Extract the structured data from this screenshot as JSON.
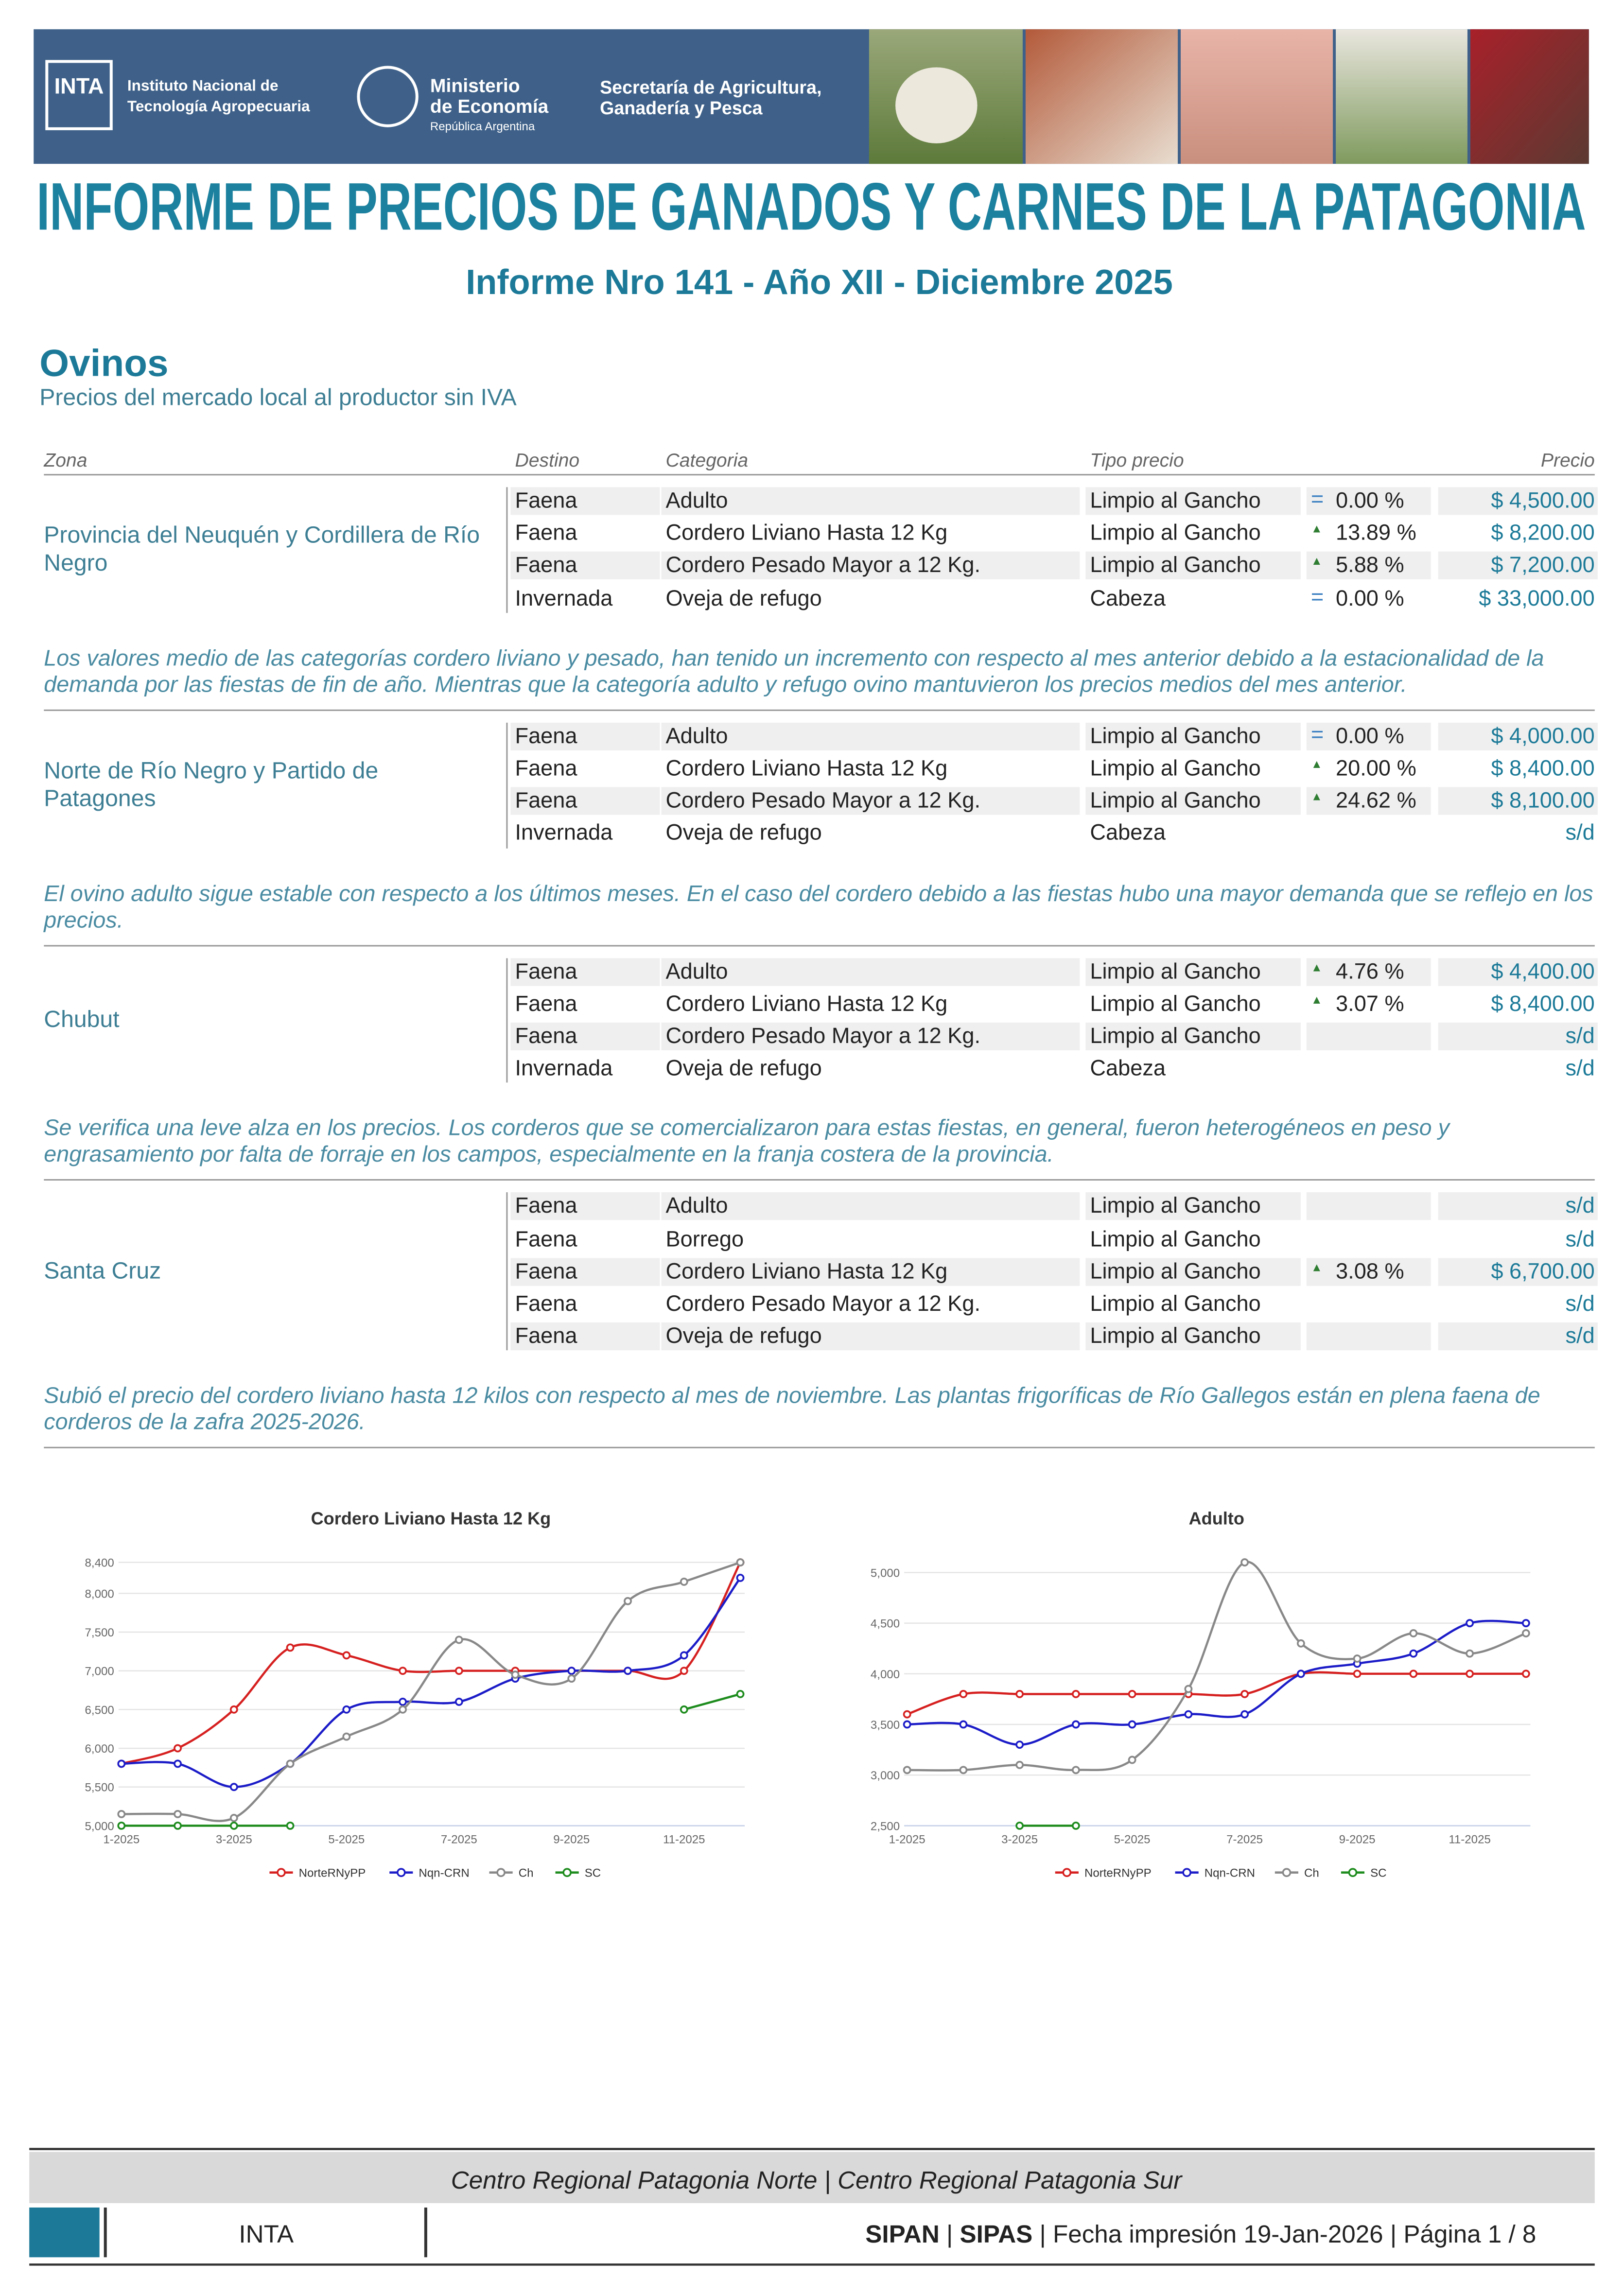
{
  "header": {
    "inta_logo": "INTA",
    "inta_name": [
      "Instituto Nacional de",
      "Tecnología Agropecuaria"
    ],
    "ministerio": [
      "Ministerio",
      "de Economía"
    ],
    "republica": "República Argentina",
    "secretaria": [
      "Secretaría de Agricultura,",
      "Ganadería y Pesca"
    ],
    "title": "INFORME DE PRECIOS DE GANADOS Y CARNES DE LA PATAGONIA"
  },
  "report": {
    "number": "Informe Nro 141 - Año XII - Diciembre 2025",
    "section": "Ovinos",
    "subtitle": "Precios del mercado local al productor sin IVA"
  },
  "table": {
    "columns": {
      "zona": "Zona",
      "destino": "Destino",
      "categoria": "Categoria",
      "tipo": "Tipo precio",
      "precio": "Precio"
    },
    "zones": [
      {
        "name": "Provincia del Neuquén y Cordillera de Río Negro",
        "rows": [
          {
            "destino": "Faena",
            "categoria": "Adulto",
            "tipo": "Limpio al Gancho",
            "tendencia": "=",
            "variacion": "0.00 %",
            "precio": "$ 4,500.00"
          },
          {
            "destino": "Faena",
            "categoria": "Cordero Liviano Hasta 12 Kg",
            "tipo": "Limpio al Gancho",
            "tendencia": "▲",
            "variacion": "13.89 %",
            "precio": "$ 8,200.00"
          },
          {
            "destino": "Faena",
            "categoria": "Cordero Pesado Mayor a 12 Kg.",
            "tipo": "Limpio al Gancho",
            "tendencia": "▲",
            "variacion": "5.88 %",
            "precio": "$ 7,200.00"
          },
          {
            "destino": "Invernada",
            "categoria": "Oveja de refugo",
            "tipo": "Cabeza",
            "tendencia": "=",
            "variacion": "0.00 %",
            "precio": "$ 33,000.00"
          }
        ],
        "comment": "Los valores medio de las categorías cordero liviano y pesado, han tenido un incremento con respecto al mes anterior debido a la estacionalidad de la demanda por las fiestas de fin de año. Mientras que la categoría adulto y refugo ovino mantuvieron los precios medios del mes anterior."
      },
      {
        "name": "Norte de Río Negro y Partido de Patagones",
        "rows": [
          {
            "destino": "Faena",
            "categoria": "Adulto",
            "tipo": "Limpio al Gancho",
            "tendencia": "=",
            "variacion": "0.00 %",
            "precio": "$ 4,000.00"
          },
          {
            "destino": "Faena",
            "categoria": "Cordero Liviano Hasta 12 Kg",
            "tipo": "Limpio al Gancho",
            "tendencia": "▲",
            "variacion": "20.00 %",
            "precio": "$ 8,400.00"
          },
          {
            "destino": "Faena",
            "categoria": "Cordero Pesado Mayor a 12 Kg.",
            "tipo": "Limpio al Gancho",
            "tendencia": "▲",
            "variacion": "24.62 %",
            "precio": "$ 8,100.00"
          },
          {
            "destino": "Invernada",
            "categoria": "Oveja de refugo",
            "tipo": "Cabeza",
            "precio": "s/d"
          }
        ],
        "comment": "El ovino adulto sigue estable con respecto a los últimos meses. En el caso del cordero debido a las fiestas hubo una mayor demanda que se reflejo en los precios."
      },
      {
        "name": "Chubut",
        "rows": [
          {
            "destino": "Faena",
            "categoria": "Adulto",
            "tipo": "Limpio al Gancho",
            "tendencia": "▲",
            "variacion": "4.76 %",
            "precio": "$ 4,400.00"
          },
          {
            "destino": "Faena",
            "categoria": "Cordero Liviano Hasta 12 Kg",
            "tipo": "Limpio al Gancho",
            "tendencia": "▲",
            "variacion": "3.07 %",
            "precio": "$ 8,400.00"
          },
          {
            "destino": "Faena",
            "categoria": "Cordero Pesado Mayor a 12 Kg.",
            "tipo": "Limpio al Gancho",
            "precio": "s/d"
          },
          {
            "destino": "Invernada",
            "categoria": "Oveja de refugo",
            "tipo": "Cabeza",
            "precio": "s/d"
          }
        ],
        "comment": "Se verifica una leve alza en los precios. Los corderos que se comercializaron para estas fiestas, en general, fueron heterogéneos en peso y engrasamiento por falta de forraje en los campos, especialmente en la franja costera de la provincia."
      },
      {
        "name": "Santa Cruz",
        "rows": [
          {
            "destino": "Faena",
            "categoria": "Adulto",
            "tipo": "Limpio al Gancho",
            "precio": "s/d"
          },
          {
            "destino": "Faena",
            "categoria": "Borrego",
            "tipo": "Limpio al Gancho",
            "precio": "s/d"
          },
          {
            "destino": "Faena",
            "categoria": "Cordero Liviano Hasta 12 Kg",
            "tipo": "Limpio al Gancho",
            "tendencia": "▲",
            "variacion": "3.08 %",
            "precio": "$ 6,700.00"
          },
          {
            "destino": "Faena",
            "categoria": "Cordero Pesado Mayor a 12 Kg.",
            "tipo": "Limpio al Gancho",
            "precio": "s/d"
          },
          {
            "destino": "Faena",
            "categoria": "Oveja de refugo",
            "tipo": "Limpio al Gancho",
            "precio": "s/d"
          }
        ],
        "comment": "Subió el precio del cordero liviano hasta 12 kilos con respecto al mes de noviembre. Las plantas frigoríficas de Río Gallegos están en plena faena de corderos de la zafra 2025-2026."
      }
    ]
  },
  "chart_data": [
    {
      "type": "line",
      "title": "Cordero Liviano Hasta 12 Kg",
      "smooth": true,
      "grid": true,
      "legend": "bottom",
      "categories": [
        "1-2025",
        null,
        "3-2025",
        null,
        "5-2025",
        null,
        "7-2025",
        null,
        "9-2025",
        null,
        "11-2025",
        null
      ],
      "ylim": [
        5000,
        8400
      ],
      "yticks": [
        {
          "value": 5000,
          "label": "5,000"
        },
        {
          "value": 5500,
          "label": "5,500"
        },
        {
          "value": 6000,
          "label": "6,000"
        },
        {
          "value": 6500,
          "label": "6,500"
        },
        {
          "value": 7000,
          "label": "7,000"
        },
        {
          "value": 7500,
          "label": "7,500"
        },
        {
          "value": 8000,
          "label": "8,000"
        },
        {
          "value": 8400,
          "label": "8,400"
        }
      ],
      "series": [
        {
          "name": "NorteRNyPP",
          "color": "#d62020",
          "values": [
            5800,
            6000,
            6500,
            7300,
            7200,
            7000,
            7000,
            7000,
            7000,
            7000,
            7000,
            8400
          ]
        },
        {
          "name": "Nqn-CRN",
          "color": "#1c1cc8",
          "values": [
            5800,
            5800,
            5500,
            5800,
            6500,
            6600,
            6600,
            6900,
            7000,
            7000,
            7200,
            8200
          ]
        },
        {
          "name": "Ch",
          "color": "#888888",
          "values": [
            5150,
            5150,
            5100,
            5800,
            6150,
            6500,
            7400,
            6950,
            6900,
            7900,
            8150,
            8400
          ]
        },
        {
          "name": "SC",
          "color": "#1e8c1e",
          "values": [
            5000,
            5000,
            5000,
            5000,
            null,
            null,
            null,
            null,
            null,
            null,
            6500,
            6700
          ]
        }
      ]
    },
    {
      "type": "line",
      "title": "Adulto",
      "smooth": true,
      "grid": true,
      "legend": "bottom",
      "categories": [
        "1-2025",
        null,
        "3-2025",
        null,
        "5-2025",
        null,
        "7-2025",
        null,
        "9-2025",
        null,
        "11-2025",
        null
      ],
      "ylim": [
        2500,
        5100
      ],
      "yticks": [
        {
          "value": 2500,
          "label": "2,500"
        },
        {
          "value": 3000,
          "label": "3,000"
        },
        {
          "value": 3500,
          "label": "3,500"
        },
        {
          "value": 4000,
          "label": "4,000"
        },
        {
          "value": 4500,
          "label": "4,500"
        },
        {
          "value": 5000,
          "label": "5,000"
        }
      ],
      "series": [
        {
          "name": "NorteRNyPP",
          "color": "#d62020",
          "values": [
            3600,
            3800,
            3800,
            3800,
            3800,
            3800,
            3800,
            4000,
            4000,
            4000,
            4000,
            4000
          ]
        },
        {
          "name": "Nqn-CRN",
          "color": "#1c1cc8",
          "values": [
            3500,
            3500,
            3300,
            3500,
            3500,
            3600,
            3600,
            4000,
            4100,
            4200,
            4500,
            4500
          ]
        },
        {
          "name": "Ch",
          "color": "#888888",
          "values": [
            3050,
            3050,
            3100,
            3050,
            3150,
            3850,
            5100,
            4300,
            4150,
            4400,
            4200,
            4400
          ]
        },
        {
          "name": "SC",
          "color": "#1e8c1e",
          "values": [
            null,
            null,
            2500,
            2500,
            null,
            null,
            null,
            null,
            null,
            null,
            null,
            null
          ]
        }
      ]
    }
  ],
  "footer": {
    "centros": "Centro Regional Patagonia Norte | Centro Regional Patagonia Sur",
    "inta": "INTA",
    "sipan": "SIPAN",
    "sep": "|",
    "sipas": "SIPAS",
    "info": "| Fecha impresión 19-Jan-2026 | Página 1 / 8"
  }
}
